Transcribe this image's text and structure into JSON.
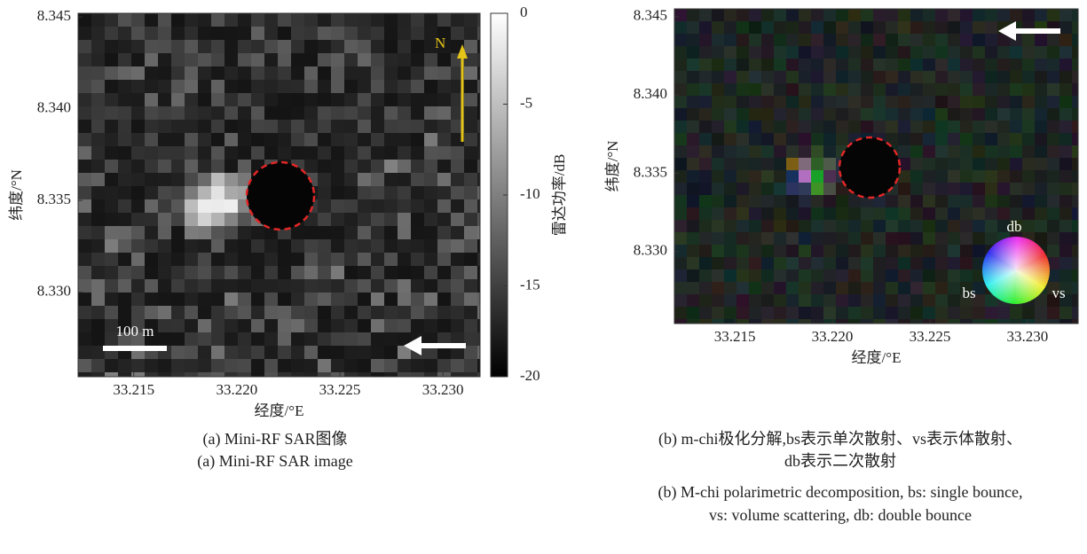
{
  "chart_data": [
    {
      "type": "image",
      "xlabel": "经度/°E",
      "ylabel": "纬度/°N",
      "xlim": [
        33.2123,
        33.2318
      ],
      "ylim": [
        8.3254,
        8.3452
      ],
      "xticks": [
        33.215,
        {
          "value": 33.22,
          "label": "33.220"
        },
        33.225,
        {
          "value": 33.23,
          "label": "33.230"
        }
      ],
      "yticks": [
        8.345,
        {
          "value": 8.34,
          "label": "8.340"
        },
        8.335,
        {
          "value": 8.33,
          "label": "8.330"
        }
      ],
      "colorbar_label": "雷达功率/dB",
      "colorbar_lim": [
        -20,
        0
      ],
      "colorbar_ticks": [
        0,
        -5,
        -10,
        -15,
        -20
      ],
      "north_label": "N",
      "scale_label": "100 m",
      "caption": [
        "(a) Mini-RF SAR图像",
        "(a) Mini-RF SAR image"
      ]
    },
    {
      "type": "image",
      "xlabel": "经度/°E",
      "ylabel": "纬度/°N",
      "xlim": [
        33.2119,
        33.2326
      ],
      "ylim": [
        8.3254,
        8.3455
      ],
      "xticks": [
        33.215,
        {
          "value": 33.22,
          "label": "33.220"
        },
        33.225,
        {
          "value": 33.23,
          "label": "33.230"
        }
      ],
      "yticks": [
        8.345,
        {
          "value": 8.34,
          "label": "8.340"
        },
        8.335,
        {
          "value": 8.33,
          "label": "8.330"
        }
      ],
      "wheel_labels": [
        "db",
        "bs",
        "vs"
      ],
      "caption": [
        "(b) m-chi极化分解,bs表示单次散射、vs表示体散射、",
        "db表示二次散射",
        "(b) M-chi polarimetric decomposition, bs: single bounce,",
        "vs: volume scattering, db: double bounce"
      ]
    }
  ]
}
